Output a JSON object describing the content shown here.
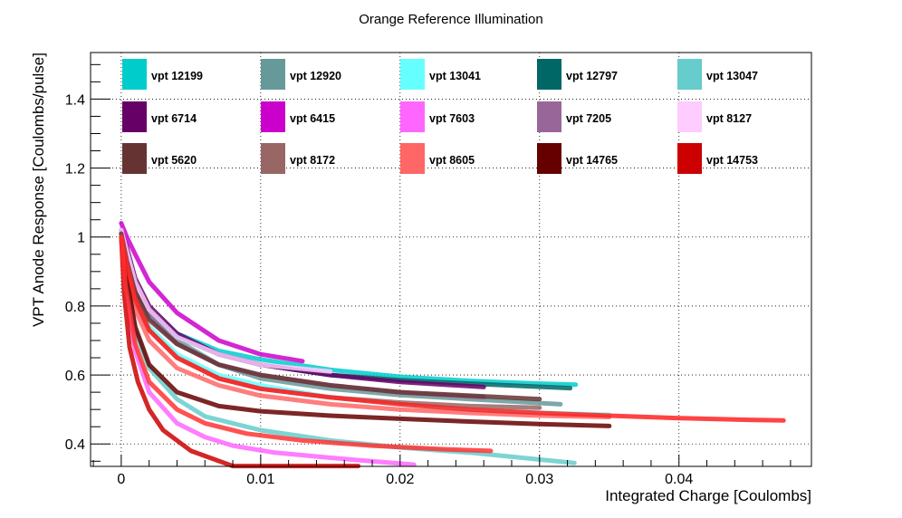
{
  "chart_data": {
    "type": "line",
    "title": "Orange Reference Illumination",
    "xlabel": "Integrated Charge [Coulombs]",
    "ylabel": "VPT Anode Response [Coulombs/pulse]",
    "xlim": [
      -0.0022,
      0.0495
    ],
    "ylim": [
      0.335,
      1.535
    ],
    "x_ticks": [
      0,
      0.01,
      0.02,
      0.03,
      0.04
    ],
    "x_tick_labels": [
      "0",
      "0.01",
      "0.02",
      "0.03",
      "0.04"
    ],
    "y_ticks": [
      0.4,
      0.6,
      0.8,
      1.0,
      1.2,
      1.4
    ],
    "y_tick_labels": [
      "0.4",
      "0.6",
      "0.8",
      "1",
      "1.2",
      "1.4"
    ],
    "grid": true,
    "legend_position": "top",
    "series": [
      {
        "name": "vpt 12199",
        "color": "#00cccc",
        "x": [
          0,
          0.0004,
          0.001,
          0.002,
          0.004,
          0.007,
          0.01,
          0.015,
          0.02,
          0.025,
          0.03,
          0.0326
        ],
        "y": [
          1.02,
          0.96,
          0.87,
          0.79,
          0.72,
          0.67,
          0.645,
          0.615,
          0.595,
          0.583,
          0.575,
          0.572
        ]
      },
      {
        "name": "vpt 12920",
        "color": "#669999",
        "x": [
          0,
          0.0004,
          0.001,
          0.002,
          0.004,
          0.007,
          0.01,
          0.015,
          0.02,
          0.025,
          0.0315
        ],
        "y": [
          1.01,
          0.94,
          0.86,
          0.78,
          0.7,
          0.63,
          0.59,
          0.56,
          0.542,
          0.53,
          0.515
        ]
      },
      {
        "name": "vpt 13041",
        "color": "#66ffff",
        "x": [
          0,
          0.0004,
          0.001,
          0.002,
          0.004,
          0.007,
          0.01,
          0.015,
          0.02,
          0.025,
          0.03,
          0.035
        ],
        "y": [
          1.0,
          0.92,
          0.82,
          0.74,
          0.66,
          0.6,
          0.57,
          0.535,
          0.515,
          0.5,
          0.49,
          0.485
        ]
      },
      {
        "name": "vpt 12797",
        "color": "#006666",
        "x": [
          0,
          0.0004,
          0.001,
          0.002,
          0.004,
          0.007,
          0.01,
          0.015,
          0.02,
          0.025,
          0.0322
        ],
        "y": [
          1.01,
          0.95,
          0.86,
          0.79,
          0.71,
          0.66,
          0.63,
          0.6,
          0.585,
          0.575,
          0.562
        ]
      },
      {
        "name": "vpt 13047",
        "color": "#66cccc",
        "x": [
          0,
          0.0004,
          0.001,
          0.002,
          0.004,
          0.006,
          0.01,
          0.015,
          0.02,
          0.025,
          0.0325
        ],
        "y": [
          0.99,
          0.86,
          0.73,
          0.62,
          0.53,
          0.48,
          0.44,
          0.41,
          0.39,
          0.375,
          0.345
        ]
      },
      {
        "name": "vpt 6714",
        "color": "#660066",
        "x": [
          0,
          0.0004,
          0.001,
          0.002,
          0.004,
          0.007,
          0.01,
          0.015,
          0.02,
          0.026
        ],
        "y": [
          1.02,
          0.97,
          0.88,
          0.8,
          0.72,
          0.66,
          0.63,
          0.6,
          0.58,
          0.565
        ]
      },
      {
        "name": "vpt 6415",
        "color": "#cc00cc",
        "x": [
          0,
          0.0004,
          0.001,
          0.002,
          0.004,
          0.007,
          0.01,
          0.013
        ],
        "y": [
          1.04,
          1.0,
          0.95,
          0.87,
          0.78,
          0.7,
          0.66,
          0.64
        ]
      },
      {
        "name": "vpt 7603",
        "color": "#ff66ff",
        "x": [
          0,
          0.0003,
          0.001,
          0.002,
          0.004,
          0.006,
          0.008,
          0.011,
          0.015,
          0.021
        ],
        "y": [
          1.0,
          0.86,
          0.67,
          0.55,
          0.46,
          0.42,
          0.395,
          0.375,
          0.36,
          0.34
        ]
      },
      {
        "name": "vpt 7205",
        "color": "#996699",
        "x": [
          0,
          0.0004,
          0.001,
          0.002,
          0.004,
          0.007,
          0.01,
          0.015,
          0.02,
          0.026
        ],
        "y": [
          1.02,
          0.95,
          0.85,
          0.77,
          0.69,
          0.63,
          0.6,
          0.57,
          0.55,
          0.535
        ]
      },
      {
        "name": "vpt 8127",
        "color": "#ffccff",
        "x": [
          0,
          0.0004,
          0.001,
          0.002,
          0.004,
          0.007,
          0.01,
          0.015
        ],
        "y": [
          1.02,
          0.96,
          0.87,
          0.79,
          0.71,
          0.66,
          0.63,
          0.61
        ]
      },
      {
        "name": "vpt 5620",
        "color": "#663333",
        "x": [
          0,
          0.0004,
          0.001,
          0.002,
          0.004,
          0.007,
          0.01,
          0.015,
          0.02,
          0.025,
          0.03
        ],
        "y": [
          1.01,
          0.93,
          0.84,
          0.76,
          0.69,
          0.63,
          0.6,
          0.57,
          0.55,
          0.54,
          0.53
        ]
      },
      {
        "name": "vpt 8172",
        "color": "#996666",
        "x": [
          0,
          0.0004,
          0.001,
          0.002,
          0.004,
          0.007,
          0.01,
          0.015,
          0.02,
          0.025,
          0.03
        ],
        "y": [
          1.0,
          0.91,
          0.81,
          0.73,
          0.65,
          0.59,
          0.56,
          0.535,
          0.52,
          0.51,
          0.505
        ]
      },
      {
        "name": "vpt 8605",
        "color": "#ff6666",
        "x": [
          0,
          0.0004,
          0.001,
          0.002,
          0.004,
          0.007,
          0.01,
          0.015,
          0.02,
          0.025,
          0.03,
          0.035
        ],
        "y": [
          1.0,
          0.9,
          0.79,
          0.7,
          0.62,
          0.57,
          0.54,
          0.515,
          0.5,
          0.49,
          0.482,
          0.478
        ]
      },
      {
        "name": "vpt 14765",
        "color": "#660000",
        "x": [
          0,
          0.0004,
          0.001,
          0.002,
          0.004,
          0.007,
          0.01,
          0.015,
          0.02,
          0.025,
          0.03,
          0.035
        ],
        "y": [
          1.0,
          0.88,
          0.74,
          0.63,
          0.55,
          0.51,
          0.495,
          0.482,
          0.473,
          0.465,
          0.458,
          0.452
        ]
      },
      {
        "name": "vpt 14753",
        "color": "#cc0000",
        "x": [
          0,
          0.0002,
          0.0006,
          0.0012,
          0.002,
          0.003,
          0.005,
          0.008,
          0.011,
          0.014,
          0.017
        ],
        "y": [
          1.0,
          0.84,
          0.68,
          0.58,
          0.5,
          0.44,
          0.38,
          0.335,
          0.31,
          0.295,
          0.285
        ]
      },
      {
        "name": "",
        "color": "#ff2222",
        "x": [
          0,
          0.0004,
          0.001,
          0.002,
          0.004,
          0.007,
          0.01,
          0.015,
          0.02,
          0.025,
          0.03,
          0.035,
          0.04,
          0.045,
          0.0475
        ],
        "y": [
          1.0,
          0.92,
          0.82,
          0.73,
          0.65,
          0.59,
          0.56,
          0.535,
          0.515,
          0.5,
          0.49,
          0.482,
          0.475,
          0.47,
          0.468
        ]
      },
      {
        "name": "",
        "color": "#ff3333",
        "x": [
          0,
          0.0003,
          0.001,
          0.002,
          0.004,
          0.006,
          0.009,
          0.013,
          0.018,
          0.023,
          0.0265
        ],
        "y": [
          1.0,
          0.86,
          0.69,
          0.58,
          0.5,
          0.46,
          0.43,
          0.41,
          0.395,
          0.385,
          0.38
        ]
      }
    ]
  }
}
